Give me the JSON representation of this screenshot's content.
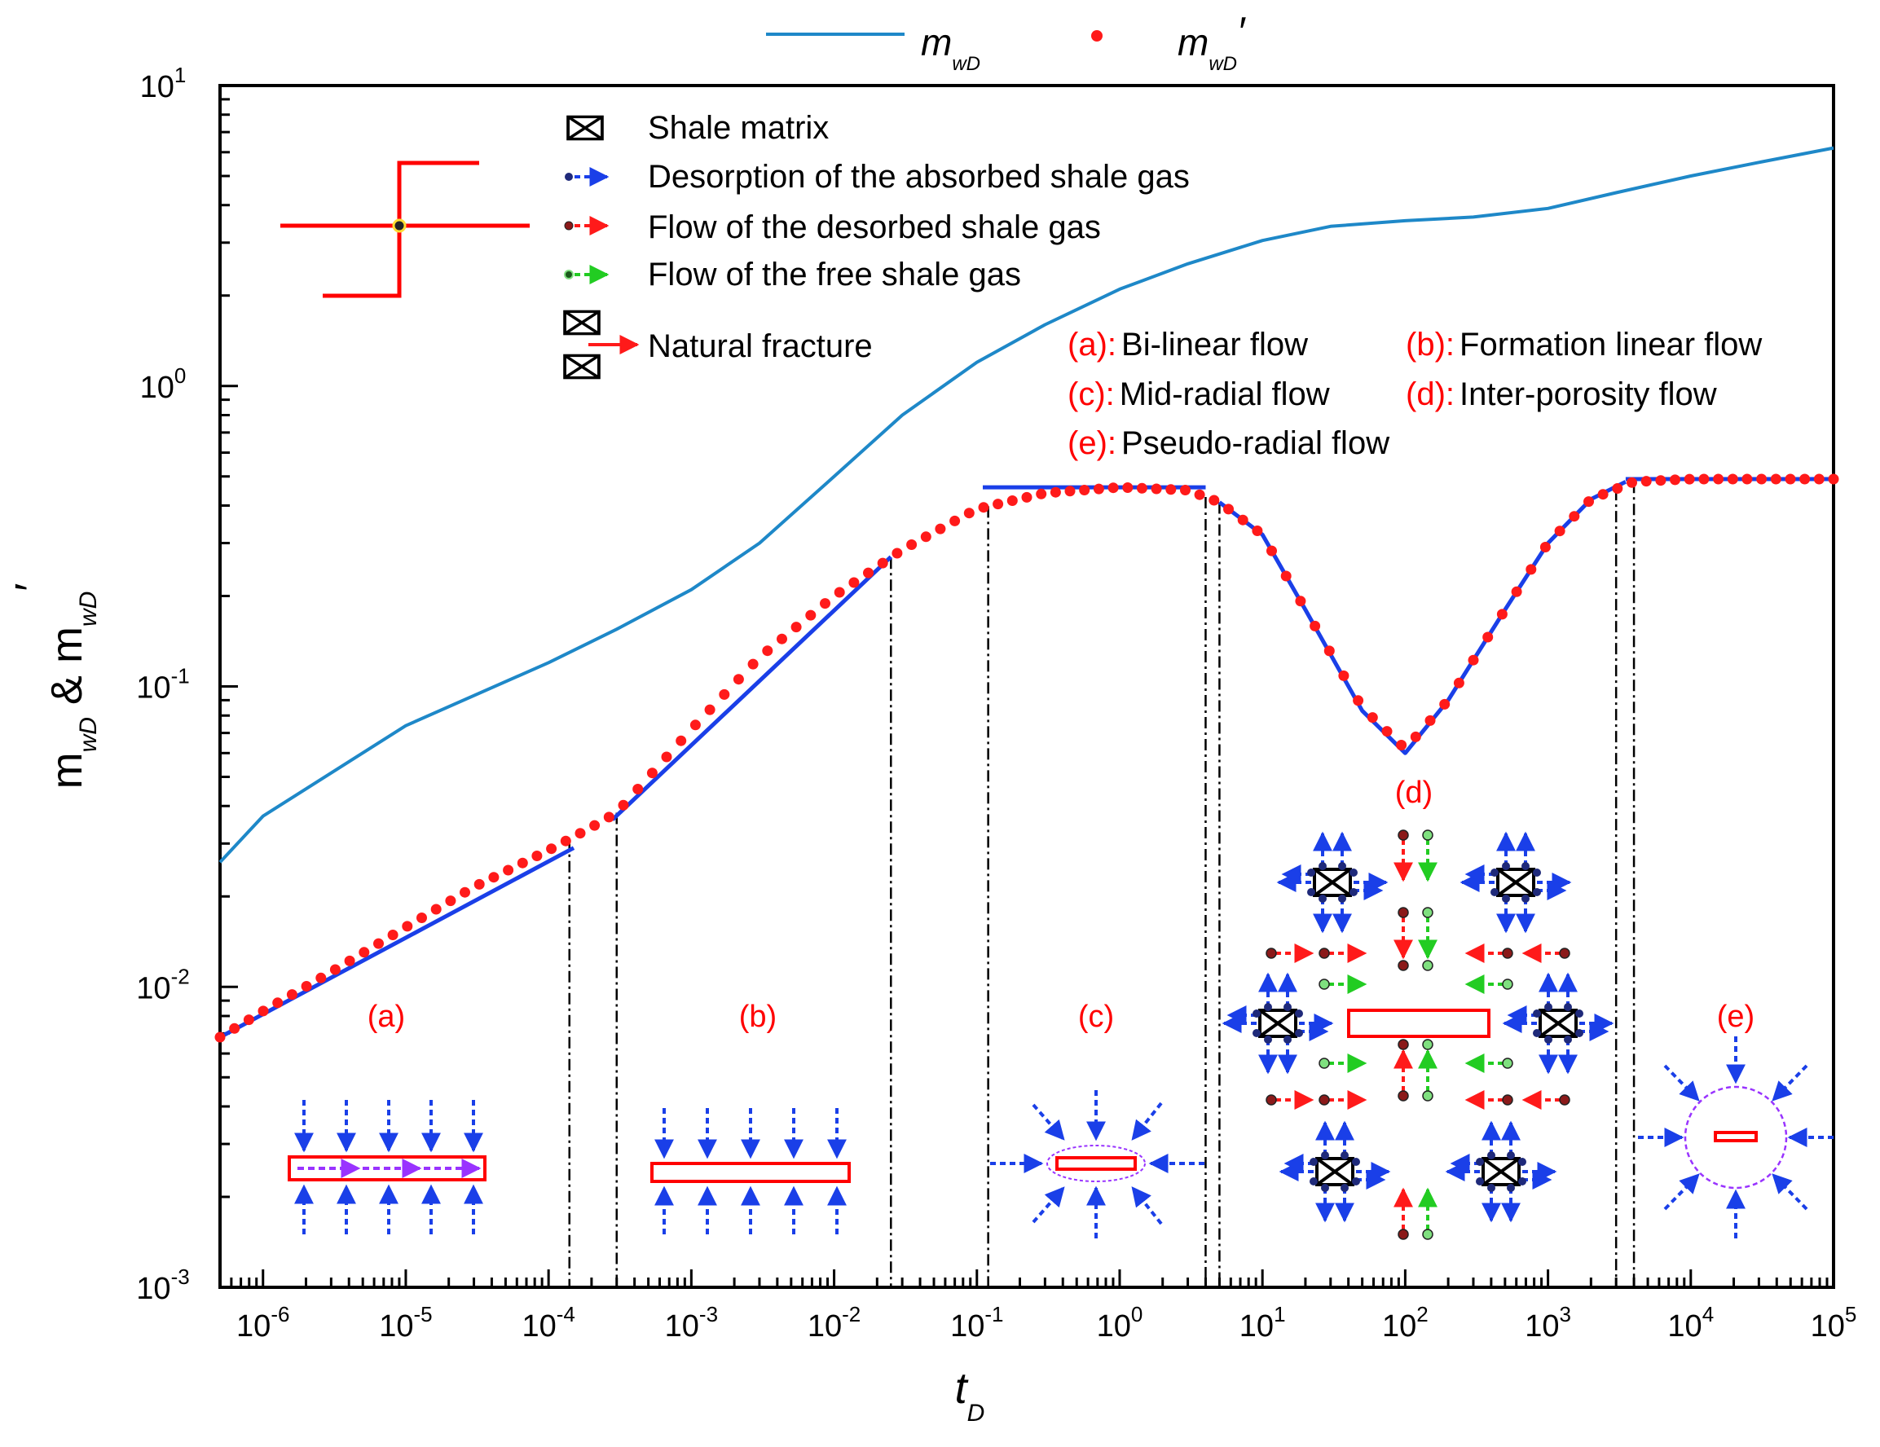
{
  "chart_data": {
    "type": "line",
    "scale": {
      "x": "log",
      "y": "log"
    },
    "xlim": [
      5e-07,
      100000.0
    ],
    "ylim": [
      0.001,
      10
    ],
    "xlabel": "t",
    "xlabel_sub": "D",
    "ylabel": {
      "m1": "m",
      "sub1": "wD",
      "amp": " & ",
      "m2": "m",
      "sub2": "wD",
      "prime": "′"
    },
    "x_ticks": [
      {
        "base": "10",
        "exp": "-6",
        "v": 1e-06
      },
      {
        "base": "10",
        "exp": "-5",
        "v": 1e-05
      },
      {
        "base": "10",
        "exp": "-4",
        "v": 0.0001
      },
      {
        "base": "10",
        "exp": "-3",
        "v": 0.001
      },
      {
        "base": "10",
        "exp": "-2",
        "v": 0.01
      },
      {
        "base": "10",
        "exp": "-1",
        "v": 0.1
      },
      {
        "base": "10",
        "exp": "0",
        "v": 1
      },
      {
        "base": "10",
        "exp": "1",
        "v": 10
      },
      {
        "base": "10",
        "exp": "2",
        "v": 100
      },
      {
        "base": "10",
        "exp": "3",
        "v": 1000
      },
      {
        "base": "10",
        "exp": "4",
        "v": 10000
      },
      {
        "base": "10",
        "exp": "5",
        "v": 100000
      }
    ],
    "y_ticks": [
      {
        "base": "10",
        "exp": "-3",
        "v": 0.001
      },
      {
        "base": "10",
        "exp": "-2",
        "v": 0.01
      },
      {
        "base": "10",
        "exp": "-1",
        "v": 0.1
      },
      {
        "base": "10",
        "exp": "0",
        "v": 1
      },
      {
        "base": "10",
        "exp": "1",
        "v": 10
      }
    ],
    "legend": {
      "position": "top",
      "entries": [
        {
          "label": "m",
          "sub": "wD",
          "prime": "",
          "style": "line",
          "color": "#1e88c8"
        },
        {
          "label": "m",
          "sub": "wD",
          "prime": "′",
          "style": "markers",
          "color": "#ff1a1a"
        }
      ]
    },
    "series": [
      {
        "name": "m_wD",
        "style": "line",
        "color": "#1e88c8",
        "points": [
          [
            5e-07,
            0.026
          ],
          [
            1e-06,
            0.037
          ],
          [
            1e-05,
            0.074
          ],
          [
            0.0001,
            0.12
          ],
          [
            0.0003,
            0.155
          ],
          [
            0.001,
            0.21
          ],
          [
            0.003,
            0.3
          ],
          [
            0.01,
            0.5
          ],
          [
            0.03,
            0.8
          ],
          [
            0.1,
            1.2
          ],
          [
            0.3,
            1.6
          ],
          [
            1,
            2.1
          ],
          [
            3,
            2.55
          ],
          [
            10,
            3.05
          ],
          [
            30,
            3.4
          ],
          [
            100,
            3.55
          ],
          [
            300,
            3.65
          ],
          [
            1000,
            3.9
          ],
          [
            3000,
            4.4
          ],
          [
            10000,
            5.0
          ],
          [
            30000,
            5.55
          ],
          [
            100000,
            6.2
          ]
        ]
      },
      {
        "name": "m_wD'",
        "style": "markers",
        "color": "#ff1a1a",
        "points": [
          [
            5e-07,
            0.0068
          ],
          [
            1e-06,
            0.0083
          ],
          [
            3e-06,
            0.0112
          ],
          [
            1e-05,
            0.0158
          ],
          [
            3e-05,
            0.0215
          ],
          [
            0.0001,
            0.0285
          ],
          [
            0.0002,
            0.034
          ],
          [
            0.0003,
            0.038
          ],
          [
            0.001,
            0.072
          ],
          [
            0.003,
            0.125
          ],
          [
            0.01,
            0.2
          ],
          [
            0.02,
            0.25
          ],
          [
            0.03,
            0.285
          ],
          [
            0.1,
            0.39
          ],
          [
            0.3,
            0.44
          ],
          [
            1,
            0.46
          ],
          [
            3,
            0.45
          ],
          [
            5,
            0.41
          ],
          [
            10,
            0.32
          ],
          [
            20,
            0.18
          ],
          [
            50,
            0.085
          ],
          [
            100,
            0.062
          ],
          [
            200,
            0.09
          ],
          [
            500,
            0.18
          ],
          [
            1000,
            0.3
          ],
          [
            2000,
            0.42
          ],
          [
            4000,
            0.48
          ],
          [
            10000,
            0.49
          ],
          [
            100000,
            0.49
          ]
        ]
      },
      {
        "name": "Bi-linear flow fit",
        "style": "line",
        "color": "#1a3fe8",
        "points": [
          [
            5e-07,
            0.0068
          ],
          [
            0.00015,
            0.029
          ]
        ]
      },
      {
        "name": "Formation linear flow fit",
        "style": "line",
        "color": "#1a3fe8",
        "points": [
          [
            0.00028,
            0.036
          ],
          [
            0.025,
            0.27
          ]
        ]
      },
      {
        "name": "Mid-radial flow fit",
        "style": "line",
        "color": "#1a3fe8",
        "points": [
          [
            0.11,
            0.46
          ],
          [
            4,
            0.46
          ]
        ]
      },
      {
        "name": "Inter-porosity flow fit",
        "style": "line",
        "color": "#1a3fe8",
        "points": [
          [
            5,
            0.41
          ],
          [
            10,
            0.32
          ],
          [
            20,
            0.18
          ],
          [
            50,
            0.083
          ],
          [
            100,
            0.06
          ],
          [
            200,
            0.09
          ],
          [
            500,
            0.18
          ],
          [
            1000,
            0.3
          ],
          [
            2000,
            0.42
          ],
          [
            3500,
            0.48
          ]
        ]
      },
      {
        "name": "Pseudo-radial flow fit",
        "style": "line",
        "color": "#1a3fe8",
        "points": [
          [
            3500,
            0.49
          ],
          [
            100000,
            0.49
          ]
        ]
      }
    ],
    "dividers_tD": [
      0.00014,
      0.0003,
      0.025,
      0.12,
      4,
      5,
      3000,
      4000
    ],
    "regions": [
      {
        "label": "(a)",
        "tD": 2e-05
      },
      {
        "label": "(b)",
        "tD": 0.006
      },
      {
        "label": "(c)",
        "tD": 0.9
      },
      {
        "label": "(d)",
        "tD": 95
      },
      {
        "label": "(e)",
        "tD": 20000
      }
    ],
    "symbol_legend": [
      {
        "symbol": "shale-matrix",
        "label": "Shale matrix"
      },
      {
        "symbol": "blue-arrow",
        "label": "Desorption of the absorbed shale gas"
      },
      {
        "symbol": "red-arrow",
        "label": "Flow of the desorbed shale gas"
      },
      {
        "symbol": "green-arrow",
        "label": "Flow of the free shale gas"
      },
      {
        "symbol": "natural-fracture",
        "label": "Natural fracture"
      }
    ],
    "flow_regimes": [
      {
        "tag": "(a)",
        "sep": ":",
        "label": "Bi-linear flow"
      },
      {
        "tag": "(b)",
        "sep": ":",
        "label": "Formation linear flow"
      },
      {
        "tag": "(c)",
        "sep": ":",
        "label": "Mid-radial flow"
      },
      {
        "tag": "(d)",
        "sep": ":",
        "label": "Inter-porosity flow"
      },
      {
        "tag": "(e)",
        "sep": ":",
        "label": "Pseudo-radial flow"
      }
    ]
  }
}
